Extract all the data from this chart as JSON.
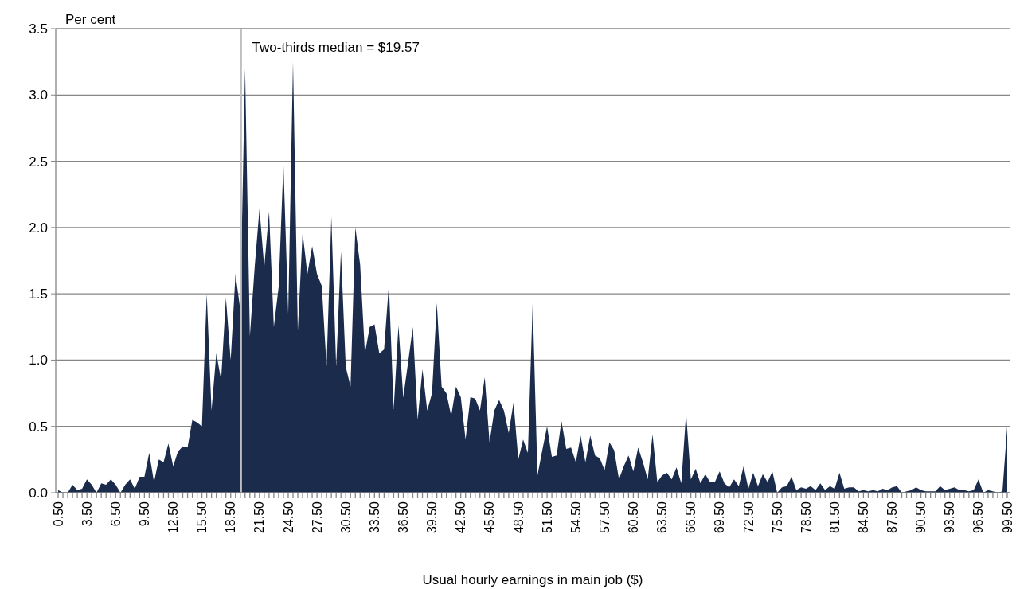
{
  "chart_data": {
    "type": "area",
    "xlabel": "Usual hourly earnings in main job ($)",
    "ylabel": "Per cent",
    "x": [
      0.5,
      1,
      1.5,
      2,
      2.5,
      3,
      3.5,
      4,
      4.5,
      5,
      5.5,
      6,
      6.5,
      7,
      7.5,
      8,
      8.5,
      9,
      9.5,
      10,
      10.5,
      11,
      11.5,
      12,
      12.5,
      13,
      13.5,
      14,
      14.5,
      15,
      15.5,
      16,
      16.5,
      17,
      17.5,
      18,
      18.5,
      19,
      19.5,
      20,
      20.5,
      21,
      21.5,
      22,
      22.5,
      23,
      23.5,
      24,
      24.5,
      25,
      25.5,
      26,
      26.5,
      27,
      27.5,
      28,
      28.5,
      29,
      29.5,
      30,
      30.5,
      31,
      31.5,
      32,
      32.5,
      33,
      33.5,
      34,
      34.5,
      35,
      35.5,
      36,
      36.5,
      37,
      37.5,
      38,
      38.5,
      39,
      39.5,
      40,
      40.5,
      41,
      41.5,
      42,
      42.5,
      43,
      43.5,
      44,
      44.5,
      45,
      45.5,
      46,
      46.5,
      47,
      47.5,
      48,
      48.5,
      49,
      49.5,
      50,
      50.5,
      51,
      51.5,
      52,
      52.5,
      53,
      53.5,
      54,
      54.5,
      55,
      55.5,
      56,
      56.5,
      57,
      57.5,
      58,
      58.5,
      59,
      59.5,
      60,
      60.5,
      61,
      61.5,
      62,
      62.5,
      63,
      63.5,
      64,
      64.5,
      65,
      65.5,
      66,
      66.5,
      67,
      67.5,
      68,
      68.5,
      69,
      69.5,
      70,
      70.5,
      71,
      71.5,
      72,
      72.5,
      73,
      73.5,
      74,
      74.5,
      75,
      75.5,
      76,
      76.5,
      77,
      77.5,
      78,
      78.5,
      79,
      79.5,
      80,
      80.5,
      81,
      81.5,
      82,
      82.5,
      83,
      83.5,
      84,
      84.5,
      85,
      85.5,
      86,
      86.5,
      87,
      87.5,
      88,
      88.5,
      89,
      89.5,
      90,
      90.5,
      91,
      91.5,
      92,
      92.5,
      93,
      93.5,
      94,
      94.5,
      95,
      95.5,
      96,
      96.5,
      97,
      97.5,
      98,
      98.5,
      99,
      99.5
    ],
    "series": [
      {
        "color": "#1b2b4b",
        "values": [
          0.02,
          0,
          0,
          0.06,
          0.02,
          0.03,
          0.1,
          0.06,
          0,
          0.07,
          0.06,
          0.1,
          0.06,
          0,
          0.06,
          0.1,
          0.03,
          0.12,
          0.12,
          0.3,
          0.08,
          0.25,
          0.23,
          0.37,
          0.2,
          0.31,
          0.35,
          0.34,
          0.55,
          0.53,
          0.5,
          1.5,
          0.62,
          1.05,
          0.85,
          1.47,
          1.0,
          1.65,
          1.38,
          3.2,
          1.18,
          1.7,
          2.14,
          1.7,
          2.12,
          1.25,
          1.55,
          2.48,
          1.35,
          3.25,
          1.22,
          1.96,
          1.65,
          1.86,
          1.65,
          1.56,
          0.95,
          2.08,
          0.95,
          1.82,
          0.95,
          0.8,
          2.0,
          1.72,
          1.05,
          1.25,
          1.27,
          1.05,
          1.08,
          1.57,
          0.63,
          1.26,
          0.72,
          0.98,
          1.25,
          0.55,
          0.93,
          0.62,
          0.75,
          1.43,
          0.8,
          0.75,
          0.58,
          0.8,
          0.72,
          0.4,
          0.72,
          0.71,
          0.62,
          0.87,
          0.38,
          0.62,
          0.7,
          0.62,
          0.45,
          0.68,
          0.25,
          0.4,
          0.3,
          1.43,
          0.13,
          0.32,
          0.5,
          0.27,
          0.28,
          0.54,
          0.33,
          0.34,
          0.23,
          0.43,
          0.23,
          0.43,
          0.28,
          0.26,
          0.17,
          0.38,
          0.32,
          0.1,
          0.2,
          0.28,
          0.16,
          0.34,
          0.23,
          0.1,
          0.44,
          0.08,
          0.13,
          0.15,
          0.1,
          0.19,
          0.07,
          0.6,
          0.1,
          0.18,
          0.07,
          0.14,
          0.08,
          0.08,
          0.16,
          0.07,
          0.04,
          0.1,
          0.05,
          0.2,
          0.03,
          0.15,
          0.05,
          0.14,
          0.08,
          0.16,
          0,
          0.04,
          0.05,
          0.12,
          0.02,
          0.04,
          0.03,
          0.05,
          0.02,
          0.07,
          0.02,
          0.05,
          0.03,
          0.15,
          0.03,
          0.04,
          0.04,
          0.01,
          0.02,
          0.01,
          0.02,
          0.01,
          0.03,
          0.02,
          0.04,
          0.05,
          0,
          0.01,
          0.02,
          0.04,
          0.02,
          0.01,
          0.01,
          0.01,
          0.05,
          0.02,
          0.03,
          0.04,
          0.02,
          0.02,
          0.01,
          0.02,
          0.1,
          0,
          0.02,
          0.01,
          0,
          0.01,
          0.5
        ]
      }
    ],
    "xlim": [
      0.25,
      99.75
    ],
    "xticks": [
      {
        "value": 0.5,
        "label": "0.50"
      },
      {
        "value": 1,
        "label": null
      },
      {
        "value": 1.5,
        "label": null
      },
      {
        "value": 2,
        "label": null
      },
      {
        "value": 2.5,
        "label": null
      },
      {
        "value": 3,
        "label": null
      },
      {
        "value": 3.5,
        "label": "3.50"
      },
      {
        "value": 4,
        "label": null
      },
      {
        "value": 4.5,
        "label": null
      },
      {
        "value": 5,
        "label": null
      },
      {
        "value": 5.5,
        "label": null
      },
      {
        "value": 6,
        "label": null
      },
      {
        "value": 6.5,
        "label": "6.50"
      },
      {
        "value": 7,
        "label": null
      },
      {
        "value": 7.5,
        "label": null
      },
      {
        "value": 8,
        "label": null
      },
      {
        "value": 8.5,
        "label": null
      },
      {
        "value": 9,
        "label": null
      },
      {
        "value": 9.5,
        "label": "9.50"
      },
      {
        "value": 10,
        "label": null
      },
      {
        "value": 10.5,
        "label": null
      },
      {
        "value": 11,
        "label": null
      },
      {
        "value": 11.5,
        "label": null
      },
      {
        "value": 12,
        "label": null
      },
      {
        "value": 12.5,
        "label": "12.50"
      },
      {
        "value": 13,
        "label": null
      },
      {
        "value": 13.5,
        "label": null
      },
      {
        "value": 14,
        "label": null
      },
      {
        "value": 14.5,
        "label": null
      },
      {
        "value": 15,
        "label": null
      },
      {
        "value": 15.5,
        "label": "15.50"
      },
      {
        "value": 16,
        "label": null
      },
      {
        "value": 16.5,
        "label": null
      },
      {
        "value": 17,
        "label": null
      },
      {
        "value": 17.5,
        "label": null
      },
      {
        "value": 18,
        "label": null
      },
      {
        "value": 18.5,
        "label": "18.50"
      },
      {
        "value": 19,
        "label": null
      },
      {
        "value": 19.5,
        "label": null
      },
      {
        "value": 20,
        "label": null
      },
      {
        "value": 20.5,
        "label": null
      },
      {
        "value": 21,
        "label": null
      },
      {
        "value": 21.5,
        "label": "21.50"
      },
      {
        "value": 22,
        "label": null
      },
      {
        "value": 22.5,
        "label": null
      },
      {
        "value": 23,
        "label": null
      },
      {
        "value": 23.5,
        "label": null
      },
      {
        "value": 24,
        "label": null
      },
      {
        "value": 24.5,
        "label": "24.50"
      },
      {
        "value": 25,
        "label": null
      },
      {
        "value": 25.5,
        "label": null
      },
      {
        "value": 26,
        "label": null
      },
      {
        "value": 26.5,
        "label": null
      },
      {
        "value": 27,
        "label": null
      },
      {
        "value": 27.5,
        "label": "27.50"
      },
      {
        "value": 28,
        "label": null
      },
      {
        "value": 28.5,
        "label": null
      },
      {
        "value": 29,
        "label": null
      },
      {
        "value": 29.5,
        "label": null
      },
      {
        "value": 30,
        "label": null
      },
      {
        "value": 30.5,
        "label": "30.50"
      },
      {
        "value": 31,
        "label": null
      },
      {
        "value": 31.5,
        "label": null
      },
      {
        "value": 32,
        "label": null
      },
      {
        "value": 32.5,
        "label": null
      },
      {
        "value": 33,
        "label": null
      },
      {
        "value": 33.5,
        "label": "33.50"
      },
      {
        "value": 34,
        "label": null
      },
      {
        "value": 34.5,
        "label": null
      },
      {
        "value": 35,
        "label": null
      },
      {
        "value": 35.5,
        "label": null
      },
      {
        "value": 36,
        "label": null
      },
      {
        "value": 36.5,
        "label": "36.50"
      },
      {
        "value": 37,
        "label": null
      },
      {
        "value": 37.5,
        "label": null
      },
      {
        "value": 38,
        "label": null
      },
      {
        "value": 38.5,
        "label": null
      },
      {
        "value": 39,
        "label": null
      },
      {
        "value": 39.5,
        "label": "39.50"
      },
      {
        "value": 40,
        "label": null
      },
      {
        "value": 40.5,
        "label": null
      },
      {
        "value": 41,
        "label": null
      },
      {
        "value": 41.5,
        "label": null
      },
      {
        "value": 42,
        "label": null
      },
      {
        "value": 42.5,
        "label": "42.50"
      },
      {
        "value": 43,
        "label": null
      },
      {
        "value": 43.5,
        "label": null
      },
      {
        "value": 44,
        "label": null
      },
      {
        "value": 44.5,
        "label": null
      },
      {
        "value": 45,
        "label": null
      },
      {
        "value": 45.5,
        "label": "45.50"
      },
      {
        "value": 46,
        "label": null
      },
      {
        "value": 46.5,
        "label": null
      },
      {
        "value": 47,
        "label": null
      },
      {
        "value": 47.5,
        "label": null
      },
      {
        "value": 48,
        "label": null
      },
      {
        "value": 48.5,
        "label": "48.50"
      },
      {
        "value": 49,
        "label": null
      },
      {
        "value": 49.5,
        "label": null
      },
      {
        "value": 50,
        "label": null
      },
      {
        "value": 50.5,
        "label": null
      },
      {
        "value": 51,
        "label": null
      },
      {
        "value": 51.5,
        "label": "51.50"
      },
      {
        "value": 52,
        "label": null
      },
      {
        "value": 52.5,
        "label": null
      },
      {
        "value": 53,
        "label": null
      },
      {
        "value": 53.5,
        "label": null
      },
      {
        "value": 54,
        "label": null
      },
      {
        "value": 54.5,
        "label": "54.50"
      },
      {
        "value": 55,
        "label": null
      },
      {
        "value": 55.5,
        "label": null
      },
      {
        "value": 56,
        "label": null
      },
      {
        "value": 56.5,
        "label": null
      },
      {
        "value": 57,
        "label": null
      },
      {
        "value": 57.5,
        "label": "57.50"
      },
      {
        "value": 58,
        "label": null
      },
      {
        "value": 58.5,
        "label": null
      },
      {
        "value": 59,
        "label": null
      },
      {
        "value": 59.5,
        "label": null
      },
      {
        "value": 60,
        "label": null
      },
      {
        "value": 60.5,
        "label": "60.50"
      },
      {
        "value": 61,
        "label": null
      },
      {
        "value": 61.5,
        "label": null
      },
      {
        "value": 62,
        "label": null
      },
      {
        "value": 62.5,
        "label": null
      },
      {
        "value": 63,
        "label": null
      },
      {
        "value": 63.5,
        "label": "63.50"
      },
      {
        "value": 64,
        "label": null
      },
      {
        "value": 64.5,
        "label": null
      },
      {
        "value": 65,
        "label": null
      },
      {
        "value": 65.5,
        "label": null
      },
      {
        "value": 66,
        "label": null
      },
      {
        "value": 66.5,
        "label": "66.50"
      },
      {
        "value": 67,
        "label": null
      },
      {
        "value": 67.5,
        "label": null
      },
      {
        "value": 68,
        "label": null
      },
      {
        "value": 68.5,
        "label": null
      },
      {
        "value": 69,
        "label": null
      },
      {
        "value": 69.5,
        "label": "69.50"
      },
      {
        "value": 70,
        "label": null
      },
      {
        "value": 70.5,
        "label": null
      },
      {
        "value": 71,
        "label": null
      },
      {
        "value": 71.5,
        "label": null
      },
      {
        "value": 72,
        "label": null
      },
      {
        "value": 72.5,
        "label": "72.50"
      },
      {
        "value": 73,
        "label": null
      },
      {
        "value": 73.5,
        "label": null
      },
      {
        "value": 74,
        "label": null
      },
      {
        "value": 74.5,
        "label": null
      },
      {
        "value": 75,
        "label": null
      },
      {
        "value": 75.5,
        "label": "75.50"
      },
      {
        "value": 76,
        "label": null
      },
      {
        "value": 76.5,
        "label": null
      },
      {
        "value": 77,
        "label": null
      },
      {
        "value": 77.5,
        "label": null
      },
      {
        "value": 78,
        "label": null
      },
      {
        "value": 78.5,
        "label": "78.50"
      },
      {
        "value": 79,
        "label": null
      },
      {
        "value": 79.5,
        "label": null
      },
      {
        "value": 80,
        "label": null
      },
      {
        "value": 80.5,
        "label": null
      },
      {
        "value": 81,
        "label": null
      },
      {
        "value": 81.5,
        "label": "81.50"
      },
      {
        "value": 82,
        "label": null
      },
      {
        "value": 82.5,
        "label": null
      },
      {
        "value": 83,
        "label": null
      },
      {
        "value": 83.5,
        "label": null
      },
      {
        "value": 84,
        "label": null
      },
      {
        "value": 84.5,
        "label": "84.50"
      },
      {
        "value": 85,
        "label": null
      },
      {
        "value": 85.5,
        "label": null
      },
      {
        "value": 86,
        "label": null
      },
      {
        "value": 86.5,
        "label": null
      },
      {
        "value": 87,
        "label": null
      },
      {
        "value": 87.5,
        "label": "87.50"
      },
      {
        "value": 88,
        "label": null
      },
      {
        "value": 88.5,
        "label": null
      },
      {
        "value": 89,
        "label": null
      },
      {
        "value": 89.5,
        "label": null
      },
      {
        "value": 90,
        "label": null
      },
      {
        "value": 90.5,
        "label": "90.50"
      },
      {
        "value": 91,
        "label": null
      },
      {
        "value": 91.5,
        "label": null
      },
      {
        "value": 92,
        "label": null
      },
      {
        "value": 92.5,
        "label": null
      },
      {
        "value": 93,
        "label": null
      },
      {
        "value": 93.5,
        "label": "93.50"
      },
      {
        "value": 94,
        "label": null
      },
      {
        "value": 94.5,
        "label": null
      },
      {
        "value": 95,
        "label": null
      },
      {
        "value": 95.5,
        "label": null
      },
      {
        "value": 96,
        "label": null
      },
      {
        "value": 96.5,
        "label": "96.50"
      },
      {
        "value": 97,
        "label": null
      },
      {
        "value": 97.5,
        "label": null
      },
      {
        "value": 98,
        "label": null
      },
      {
        "value": 98.5,
        "label": null
      },
      {
        "value": 99,
        "label": null
      },
      {
        "value": 99.5,
        "label": "99.50"
      }
    ],
    "ylim": [
      0,
      3.5
    ],
    "yticks": [
      {
        "value": 0,
        "label": "0.0"
      },
      {
        "value": 0.5,
        "label": "0.5"
      },
      {
        "value": 1,
        "label": "1.0"
      },
      {
        "value": 1.5,
        "label": "1.5"
      },
      {
        "value": 2,
        "label": "2.0"
      },
      {
        "value": 2.5,
        "label": "2.5"
      },
      {
        "value": 3,
        "label": "3.0"
      },
      {
        "value": 3.5,
        "label": "3.5"
      }
    ],
    "grid": "y",
    "ref_lines": [
      {
        "axis": "x",
        "value": 19.57,
        "label": "Two-thirds median = $19.57",
        "color": "#bfbfbf"
      }
    ]
  }
}
